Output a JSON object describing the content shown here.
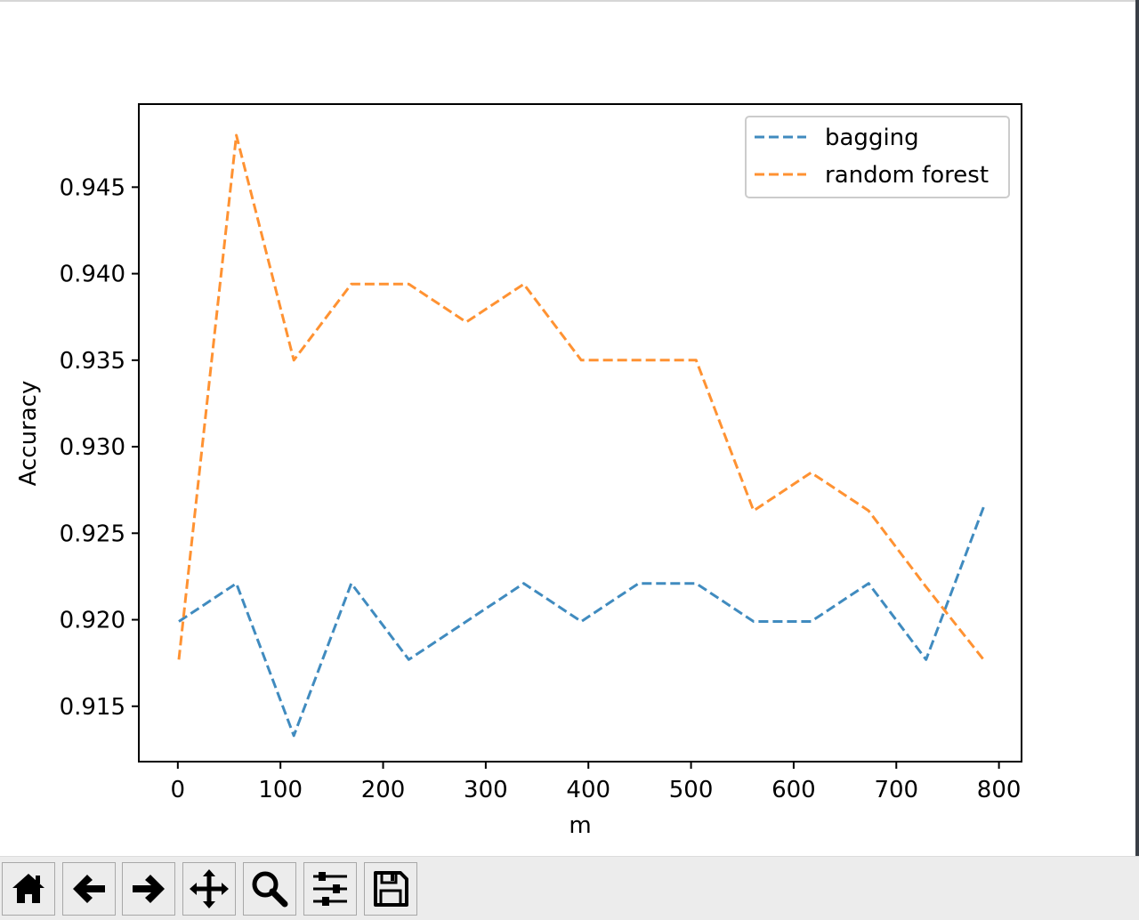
{
  "chart_data": {
    "type": "line",
    "title": "",
    "xlabel": "m",
    "ylabel": "Accuracy",
    "xlim": [
      -38,
      822
    ],
    "ylim": [
      0.9118,
      0.9498
    ],
    "xticks": [
      0,
      100,
      200,
      300,
      400,
      500,
      600,
      700,
      800
    ],
    "yticks": [
      0.915,
      0.92,
      0.925,
      0.93,
      0.935,
      0.94,
      0.945
    ],
    "ytick_labels": [
      "0.915",
      "0.920",
      "0.925",
      "0.930",
      "0.935",
      "0.940",
      "0.945"
    ],
    "grid": false,
    "legend_position": "top-right",
    "x": [
      1,
      57,
      113,
      169,
      225,
      281,
      337,
      393,
      449,
      505,
      561,
      617,
      673,
      729,
      785
    ],
    "series": [
      {
        "name": "bagging",
        "color": "#1f77b4",
        "line_style": "dashed",
        "values": [
          0.9199,
          0.9221,
          0.9133,
          0.9221,
          0.9177,
          0.9199,
          0.9221,
          0.9199,
          0.9221,
          0.9221,
          0.9199,
          0.9199,
          0.9221,
          0.9177,
          0.9265
        ]
      },
      {
        "name": "random forest",
        "color": "#ff7f0e",
        "line_style": "dashed",
        "values": [
          0.9177,
          0.948,
          0.935,
          0.9394,
          0.9394,
          0.9372,
          0.9394,
          0.935,
          0.935,
          0.935,
          0.9263,
          0.9285,
          0.9263,
          0.9219,
          0.9177
        ]
      }
    ]
  },
  "toolbar": {
    "buttons": [
      {
        "name": "home-button",
        "icon": "home-icon"
      },
      {
        "name": "back-button",
        "icon": "arrow-left-icon"
      },
      {
        "name": "forward-button",
        "icon": "arrow-right-icon"
      },
      {
        "name": "pan-button",
        "icon": "move-icon"
      },
      {
        "name": "zoom-button",
        "icon": "magnifier-icon"
      },
      {
        "name": "configure-subplots-button",
        "icon": "sliders-icon"
      },
      {
        "name": "save-button",
        "icon": "floppy-disk-icon"
      }
    ]
  }
}
